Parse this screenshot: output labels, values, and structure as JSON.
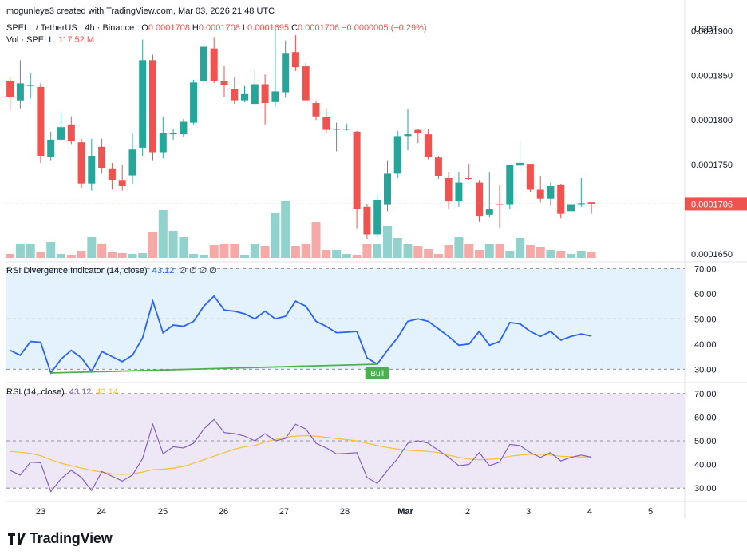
{
  "header": {
    "created_by": "mogunleye3 created with TradingView.com, Mar 03, 2026 21:48 UTC",
    "symbol_line": "SPELL / TetherUS · 4h · Binance",
    "ohlc": {
      "o_label": "O",
      "o_value": "0.0001708",
      "h_label": "H",
      "h_value": "0.0001708",
      "l_label": "L",
      "l_value": "0.0001695",
      "c_label": "C",
      "c_value": "0.0001706",
      "change": "−0.0000005 (−0.29%)"
    },
    "vol_label": "Vol · SPELL",
    "vol_value": "117.52 M"
  },
  "price_axis": {
    "currency": "USDT",
    "ticks": [
      "0.0001900",
      "0.0001850",
      "0.0001800",
      "0.0001750",
      "0.0001650"
    ],
    "last_price": "0.0001706"
  },
  "rsi_div_panel": {
    "title": "RSI Divergence Indicator (14, close)",
    "value": "43.12",
    "extra": "∅ ∅ ∅ ∅",
    "ticks": [
      "70.00",
      "60.00",
      "50.00",
      "40.00",
      "30.00"
    ],
    "bull_label": "Bull"
  },
  "rsi_panel": {
    "title": "RSI (14, close)",
    "value": "43.12",
    "ma_value": "43.14",
    "ticks": [
      "70.00",
      "60.00",
      "50.00",
      "40.00",
      "30.00"
    ]
  },
  "time_axis": {
    "labels": [
      "23",
      "24",
      "25",
      "26",
      "27",
      "28",
      "Mar",
      "2",
      "3",
      "4",
      "5"
    ]
  },
  "footer": {
    "brand": "TradingView"
  },
  "colors": {
    "up": "#26a69a",
    "down": "#ef5350",
    "vol_up": "#92d2cc",
    "vol_down": "#f7a9a7",
    "rsi_line": "#2962ff",
    "rsi_bg": "#e3f2fd",
    "rsi2_line": "#7e57c2",
    "rsi2_bg": "#ede7f6",
    "rsi_ma": "#fbc02d",
    "divergence": "#4caf50"
  },
  "chart_data": [
    {
      "type": "candlestick",
      "title": "SPELL / TetherUS · 4h · Binance",
      "ylim": [
        0.0001642,
        0.000192
      ],
      "y_ticks": [
        0.000165,
        0.000175,
        0.00018,
        0.000185,
        0.00019
      ],
      "x_labels": [
        "23",
        "24",
        "25",
        "26",
        "27",
        "28",
        "Mar",
        "2",
        "3",
        "4",
        "5"
      ],
      "candles": [
        {
          "o": 0.0001844,
          "h": 0.0001848,
          "l": 0.0001811,
          "c": 0.0001826
        },
        {
          "o": 0.0001822,
          "h": 0.0001867,
          "l": 0.0001813,
          "c": 0.0001841
        },
        {
          "o": 0.0001839,
          "h": 0.0001853,
          "l": 0.0001824,
          "c": 0.0001839
        },
        {
          "o": 0.0001837,
          "h": 0.0001841,
          "l": 0.0001752,
          "c": 0.000176
        },
        {
          "o": 0.0001759,
          "h": 0.0001787,
          "l": 0.0001755,
          "c": 0.0001778
        },
        {
          "o": 0.0001778,
          "h": 0.0001808,
          "l": 0.0001776,
          "c": 0.0001792
        },
        {
          "o": 0.0001795,
          "h": 0.0001804,
          "l": 0.0001773,
          "c": 0.0001776
        },
        {
          "o": 0.0001775,
          "h": 0.0001779,
          "l": 0.0001724,
          "c": 0.0001729
        },
        {
          "o": 0.0001729,
          "h": 0.0001779,
          "l": 0.0001721,
          "c": 0.000176
        },
        {
          "o": 0.000177,
          "h": 0.0001779,
          "l": 0.000174,
          "c": 0.0001746
        },
        {
          "o": 0.0001745,
          "h": 0.0001752,
          "l": 0.0001722,
          "c": 0.0001733
        },
        {
          "o": 0.0001732,
          "h": 0.000175,
          "l": 0.0001721,
          "c": 0.0001726
        },
        {
          "o": 0.0001738,
          "h": 0.0001785,
          "l": 0.0001728,
          "c": 0.0001767
        },
        {
          "o": 0.0001769,
          "h": 0.000189,
          "l": 0.000176,
          "c": 0.0001867
        },
        {
          "o": 0.0001867,
          "h": 0.0001873,
          "l": 0.0001755,
          "c": 0.0001764
        },
        {
          "o": 0.0001764,
          "h": 0.0001804,
          "l": 0.0001757,
          "c": 0.0001785
        },
        {
          "o": 0.0001784,
          "h": 0.000179,
          "l": 0.0001778,
          "c": 0.0001785
        },
        {
          "o": 0.0001784,
          "h": 0.0001801,
          "l": 0.0001781,
          "c": 0.0001798
        },
        {
          "o": 0.0001797,
          "h": 0.0001845,
          "l": 0.0001795,
          "c": 0.0001842
        },
        {
          "o": 0.0001844,
          "h": 0.000189,
          "l": 0.0001839,
          "c": 0.0001882
        },
        {
          "o": 0.000188,
          "h": 0.0001893,
          "l": 0.0001841,
          "c": 0.0001844
        },
        {
          "o": 0.0001844,
          "h": 0.000186,
          "l": 0.0001826,
          "c": 0.0001839
        },
        {
          "o": 0.0001835,
          "h": 0.0001848,
          "l": 0.0001818,
          "c": 0.0001822
        },
        {
          "o": 0.0001822,
          "h": 0.0001838,
          "l": 0.000182,
          "c": 0.0001829
        },
        {
          "o": 0.0001818,
          "h": 0.0001856,
          "l": 0.0001818,
          "c": 0.000184
        },
        {
          "o": 0.000184,
          "h": 0.0001851,
          "l": 0.0001795,
          "c": 0.0001819
        },
        {
          "o": 0.000182,
          "h": 0.0001904,
          "l": 0.0001815,
          "c": 0.0001832
        },
        {
          "o": 0.0001831,
          "h": 0.0001889,
          "l": 0.0001825,
          "c": 0.0001875
        },
        {
          "o": 0.0001876,
          "h": 0.0001895,
          "l": 0.0001855,
          "c": 0.0001859
        },
        {
          "o": 0.000186,
          "h": 0.0001864,
          "l": 0.0001821,
          "c": 0.0001822
        },
        {
          "o": 0.0001819,
          "h": 0.0001822,
          "l": 0.00018,
          "c": 0.0001804
        },
        {
          "o": 0.0001803,
          "h": 0.0001813,
          "l": 0.0001785,
          "c": 0.0001789
        },
        {
          "o": 0.0001789,
          "h": 0.0001797,
          "l": 0.0001765,
          "c": 0.000179
        },
        {
          "o": 0.000179,
          "h": 0.0001796,
          "l": 0.0001788,
          "c": 0.000179
        },
        {
          "o": 0.0001787,
          "h": 0.0001788,
          "l": 0.0001678,
          "c": 0.00017
        },
        {
          "o": 0.0001703,
          "h": 0.0001706,
          "l": 0.0001667,
          "c": 0.0001672
        },
        {
          "o": 0.0001672,
          "h": 0.0001716,
          "l": 0.0001668,
          "c": 0.000171
        },
        {
          "o": 0.0001705,
          "h": 0.0001755,
          "l": 0.0001698,
          "c": 0.000174
        },
        {
          "o": 0.000174,
          "h": 0.0001788,
          "l": 0.0001735,
          "c": 0.0001782
        },
        {
          "o": 0.0001782,
          "h": 0.0001812,
          "l": 0.0001766,
          "c": 0.0001784
        },
        {
          "o": 0.0001789,
          "h": 0.000179,
          "l": 0.0001774,
          "c": 0.0001785
        },
        {
          "o": 0.0001784,
          "h": 0.000179,
          "l": 0.0001756,
          "c": 0.0001759
        },
        {
          "o": 0.0001758,
          "h": 0.000176,
          "l": 0.0001734,
          "c": 0.0001737
        },
        {
          "o": 0.0001735,
          "h": 0.0001742,
          "l": 0.00017,
          "c": 0.0001709
        },
        {
          "o": 0.0001709,
          "h": 0.0001742,
          "l": 0.0001703,
          "c": 0.000173
        },
        {
          "o": 0.0001735,
          "h": 0.0001751,
          "l": 0.0001733,
          "c": 0.0001734
        },
        {
          "o": 0.000173,
          "h": 0.0001732,
          "l": 0.0001686,
          "c": 0.0001692
        },
        {
          "o": 0.0001694,
          "h": 0.0001741,
          "l": 0.0001691,
          "c": 0.00017
        },
        {
          "o": 0.0001706,
          "h": 0.0001727,
          "l": 0.0001679,
          "c": 0.0001705
        },
        {
          "o": 0.0001705,
          "h": 0.000175,
          "l": 0.00017,
          "c": 0.000175
        },
        {
          "o": 0.0001749,
          "h": 0.0001777,
          "l": 0.0001742,
          "c": 0.0001752
        },
        {
          "o": 0.0001751,
          "h": 0.0001751,
          "l": 0.0001719,
          "c": 0.0001722
        },
        {
          "o": 0.0001722,
          "h": 0.0001737,
          "l": 0.0001708,
          "c": 0.0001712
        },
        {
          "o": 0.0001712,
          "h": 0.000173,
          "l": 0.0001704,
          "c": 0.0001726
        },
        {
          "o": 0.0001727,
          "h": 0.0001728,
          "l": 0.000169,
          "c": 0.0001695
        },
        {
          "o": 0.0001698,
          "h": 0.000171,
          "l": 0.0001677,
          "c": 0.0001705
        },
        {
          "o": 0.0001705,
          "h": 0.0001735,
          "l": 0.0001703,
          "c": 0.0001707
        },
        {
          "o": 0.0001708,
          "h": 0.0001708,
          "l": 0.0001695,
          "c": 0.0001706
        }
      ]
    },
    {
      "type": "bar",
      "title": "Vol · SPELL",
      "values": [
        5,
        17,
        17,
        8,
        20,
        5,
        4,
        9,
        26,
        18,
        7,
        6,
        5,
        6,
        33,
        60,
        34,
        26,
        5,
        4,
        16,
        18,
        17,
        4,
        17,
        15,
        56,
        71,
        15,
        17,
        45,
        10,
        10,
        5,
        4,
        18,
        17,
        40,
        25,
        17,
        15,
        11,
        5,
        16,
        26,
        18,
        10,
        17,
        17,
        9,
        25,
        16,
        14,
        10,
        9,
        5,
        9,
        7
      ],
      "ylim": [
        0,
        100
      ]
    },
    {
      "type": "line",
      "title": "RSI Divergence Indicator (14, close)",
      "ylim": [
        25,
        72
      ],
      "y_ticks": [
        30,
        40,
        50,
        60,
        70
      ],
      "values": [
        37.5,
        35.5,
        41.0,
        40.7,
        28.5,
        34.0,
        37.5,
        34.5,
        29.0,
        37.0,
        35.0,
        33.0,
        35.5,
        42.5,
        57.0,
        44.5,
        47.5,
        47.0,
        49.0,
        55.0,
        59.0,
        53.5,
        53.0,
        52.0,
        50.0,
        53.0,
        50.0,
        51.0,
        57.0,
        55.0,
        49.0,
        47.0,
        44.5,
        44.7,
        45.0,
        34.5,
        32.0,
        37.5,
        42.5,
        49.0,
        50.0,
        49.0,
        46.0,
        43.0,
        39.5,
        40.0,
        45.0,
        39.5,
        41.0,
        48.5,
        48.0,
        45.0,
        43.0,
        45.0,
        41.5,
        43.0,
        44.0,
        43.12
      ],
      "divergence_line": {
        "from_index": 4,
        "from_value": 28.5,
        "to_index": 36,
        "to_value": 32.0
      },
      "bull_index": 36
    },
    {
      "type": "line",
      "title": "RSI (14, close)",
      "ylim": [
        25,
        74
      ],
      "y_ticks": [
        30,
        40,
        50,
        60,
        70
      ],
      "series": [
        {
          "name": "RSI",
          "values": [
            37.5,
            35.5,
            41.0,
            40.7,
            28.5,
            34.0,
            37.5,
            34.5,
            29.0,
            37.0,
            35.0,
            33.0,
            35.5,
            42.5,
            57.0,
            44.5,
            47.5,
            47.0,
            49.0,
            55.0,
            59.0,
            53.5,
            53.0,
            52.0,
            50.0,
            53.0,
            50.0,
            51.0,
            57.0,
            55.0,
            49.0,
            47.0,
            44.5,
            44.7,
            45.0,
            34.5,
            32.0,
            37.5,
            42.5,
            49.0,
            50.0,
            49.0,
            46.0,
            43.0,
            39.5,
            40.0,
            45.0,
            39.5,
            41.0,
            48.5,
            48.0,
            45.0,
            43.0,
            45.0,
            41.5,
            43.0,
            44.0,
            43.12
          ]
        },
        {
          "name": "RSI-based MA",
          "values": [
            45.5,
            45.2,
            44.7,
            43.7,
            42.0,
            40.5,
            39.5,
            38.5,
            37.5,
            36.8,
            36.0,
            35.8,
            36.0,
            36.8,
            37.8,
            38.0,
            38.5,
            39.2,
            40.5,
            42.0,
            43.5,
            45.0,
            46.5,
            47.5,
            48.0,
            49.5,
            50.5,
            51.5,
            52.0,
            52.2,
            52.0,
            51.5,
            51.0,
            50.5,
            50.0,
            49.0,
            48.0,
            47.2,
            46.5,
            46.0,
            45.8,
            45.5,
            45.0,
            44.0,
            43.0,
            42.3,
            42.0,
            42.2,
            42.5,
            43.5,
            44.0,
            44.3,
            44.3,
            44.0,
            43.5,
            43.3,
            43.2,
            43.14
          ]
        }
      ]
    }
  ]
}
